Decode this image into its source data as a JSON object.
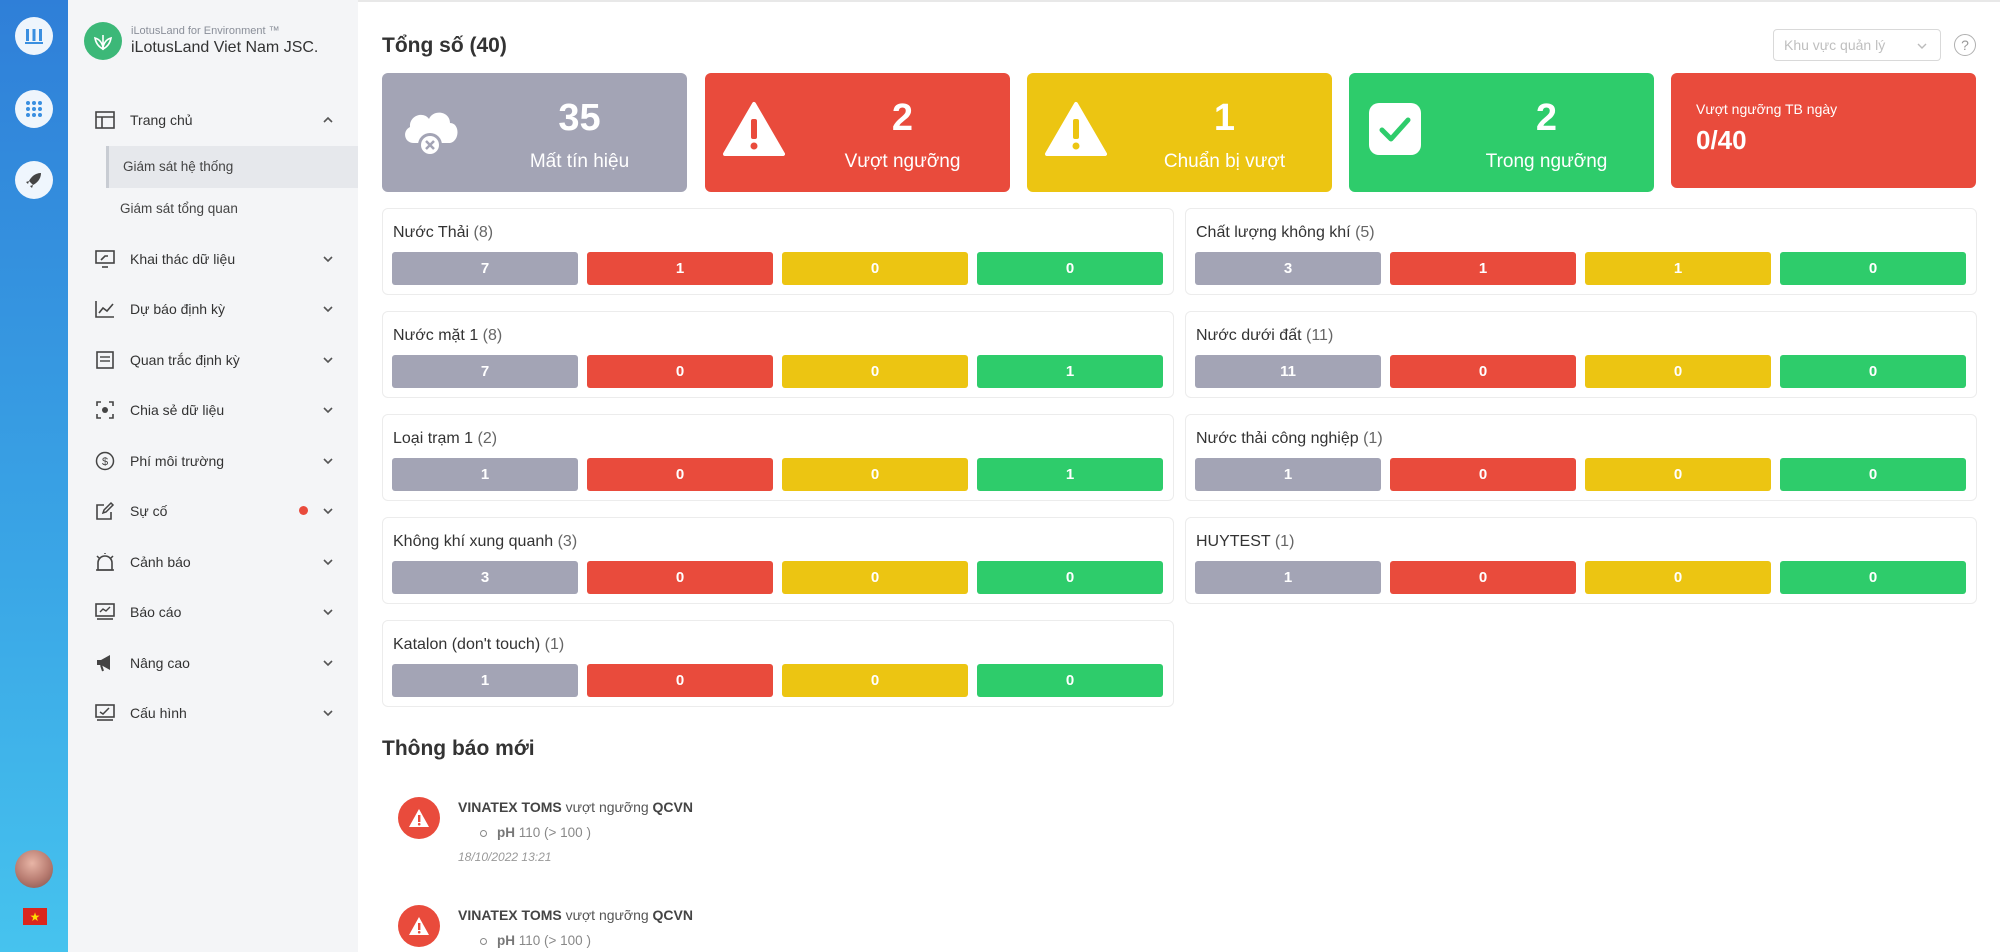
{
  "brand": {
    "subtitle": "iLotusLand for Environment ™",
    "name": "iLotusLand Viet Nam JSC."
  },
  "menu": {
    "home": "Trang chủ",
    "home_sub": [
      "Giám sát hệ thống",
      "Giám sát tổng quan"
    ],
    "items": [
      "Khai thác dữ liệu",
      "Dự báo định kỳ",
      "Quan trắc định kỳ",
      "Chia sẻ dữ liệu",
      "Phí môi trường",
      "Sự cố",
      "Cảnh báo",
      "Báo cáo",
      "Nâng cao",
      "Cấu hình"
    ]
  },
  "header": {
    "title": "Tổng số (40)",
    "region_placeholder": "Khu vực quản lý",
    "help": "?"
  },
  "summary": [
    {
      "count": "35",
      "label": "Mất tín hiệu"
    },
    {
      "count": "2",
      "label": "Vượt ngưỡng"
    },
    {
      "count": "1",
      "label": "Chuẩn bị vượt"
    },
    {
      "count": "2",
      "label": "Trong ngưỡng"
    }
  ],
  "avg": {
    "label": "Vượt ngưỡng TB ngày",
    "value": "0/40"
  },
  "stations": [
    {
      "name": "Nước Thải",
      "count": "(8)",
      "values": [
        "7",
        "1",
        "0",
        "0"
      ]
    },
    {
      "name": "Chất lượng không khí",
      "count": "(5)",
      "values": [
        "3",
        "1",
        "1",
        "0"
      ]
    },
    {
      "name": "Nước mặt 1",
      "count": "(8)",
      "values": [
        "7",
        "0",
        "0",
        "1"
      ]
    },
    {
      "name": "Nước dưới đất",
      "count": "(11)",
      "values": [
        "11",
        "0",
        "0",
        "0"
      ]
    },
    {
      "name": "Loại trạm 1",
      "count": "(2)",
      "values": [
        "1",
        "0",
        "0",
        "1"
      ]
    },
    {
      "name": "Nước thải công nghiệp",
      "count": "(1)",
      "values": [
        "1",
        "0",
        "0",
        "0"
      ]
    },
    {
      "name": "Không khí xung quanh",
      "count": "(3)",
      "values": [
        "3",
        "0",
        "0",
        "0"
      ]
    },
    {
      "name": "HUYTEST",
      "count": "(1)",
      "values": [
        "1",
        "0",
        "0",
        "0"
      ]
    },
    {
      "name": "Katalon (don't touch)",
      "count": "(1)",
      "values": [
        "1",
        "0",
        "0",
        "0"
      ]
    }
  ],
  "notifications_title": "Thông báo mới",
  "notifications": [
    {
      "station": "VINATEX TOMS",
      "text": "vượt ngưỡng",
      "standard": "QCVN",
      "param": "pH",
      "detail": "110 (> 100 )",
      "time": "18/10/2022 13:21"
    },
    {
      "station": "VINATEX TOMS",
      "text": "vượt ngưỡng",
      "standard": "QCVN",
      "param": "pH",
      "detail": "110 (> 100 )",
      "time": ""
    }
  ],
  "colors": {
    "gray": "#a3a4b5",
    "red": "#e94b3c",
    "yellow": "#ecc512",
    "green": "#2ecc6b",
    "rail": "#3aa6e6"
  },
  "icons": [
    "chart-bars-icon",
    "apps-grid-icon",
    "rocket-icon",
    "cloud-offline-icon",
    "warning-icon",
    "check-icon"
  ]
}
